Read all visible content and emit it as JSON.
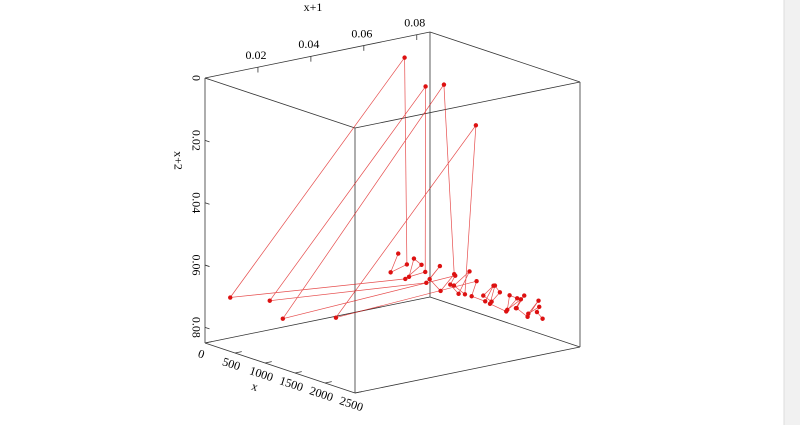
{
  "chart_data": {
    "type": "scatter3d",
    "x_label": "x",
    "y_label": "x+1",
    "z_label": "x+2",
    "color": "#dd1111",
    "xlim": [
      0,
      2500
    ],
    "ylim": [
      0,
      0.085
    ],
    "zlim": [
      0,
      0.085
    ],
    "xticks": [
      0,
      500,
      1000,
      1500,
      2000,
      2500
    ],
    "yticks": [
      0.02,
      0.04,
      0.06,
      0.08
    ],
    "zticks": [
      0,
      0.02,
      0.04,
      0.06,
      0.08
    ],
    "x": [
      0,
      50,
      100,
      150,
      200,
      250,
      300,
      350,
      400,
      450,
      500,
      550,
      600,
      650,
      700,
      750,
      800,
      850,
      900,
      950,
      1000,
      1050,
      1100,
      1150,
      1200,
      1250,
      1300,
      1350,
      1400,
      1450,
      1500,
      1550,
      1600,
      1650,
      1700,
      1750,
      1800,
      1850,
      1900,
      1950,
      2000,
      2050,
      2100,
      2150,
      2200,
      2250,
      2300,
      2350,
      2400,
      2450
    ],
    "y": [
      0.073,
      0.069,
      0.074,
      0.072,
      0.005,
      0.07,
      0.075,
      0.071,
      0.068,
      0.073,
      0.072,
      0.012,
      0.07,
      0.074,
      0.069,
      0.072,
      0.076,
      0.071,
      0.009,
      0.073,
      0.07,
      0.072,
      0.075,
      0.068,
      0.071,
      0.074,
      0.02,
      0.072,
      0.069,
      0.073,
      0.075,
      0.07,
      0.072,
      0.074,
      0.071,
      0.068,
      0.073,
      0.076,
      0.072,
      0.07,
      0.074,
      0.071,
      0.073,
      0.069,
      0.072,
      0.075,
      0.07,
      0.073,
      0.071,
      0.072
    ],
    "z": [
      0.069,
      0.074,
      0.072,
      0.005,
      0.07,
      0.075,
      0.071,
      0.068,
      0.073,
      0.072,
      0.012,
      0.07,
      0.074,
      0.069,
      0.072,
      0.076,
      0.071,
      0.009,
      0.073,
      0.07,
      0.072,
      0.075,
      0.068,
      0.071,
      0.074,
      0.02,
      0.072,
      0.069,
      0.073,
      0.075,
      0.07,
      0.072,
      0.074,
      0.071,
      0.068,
      0.073,
      0.076,
      0.072,
      0.07,
      0.074,
      0.071,
      0.073,
      0.069,
      0.072,
      0.075,
      0.07,
      0.073,
      0.071,
      0.072,
      0.074
    ]
  }
}
